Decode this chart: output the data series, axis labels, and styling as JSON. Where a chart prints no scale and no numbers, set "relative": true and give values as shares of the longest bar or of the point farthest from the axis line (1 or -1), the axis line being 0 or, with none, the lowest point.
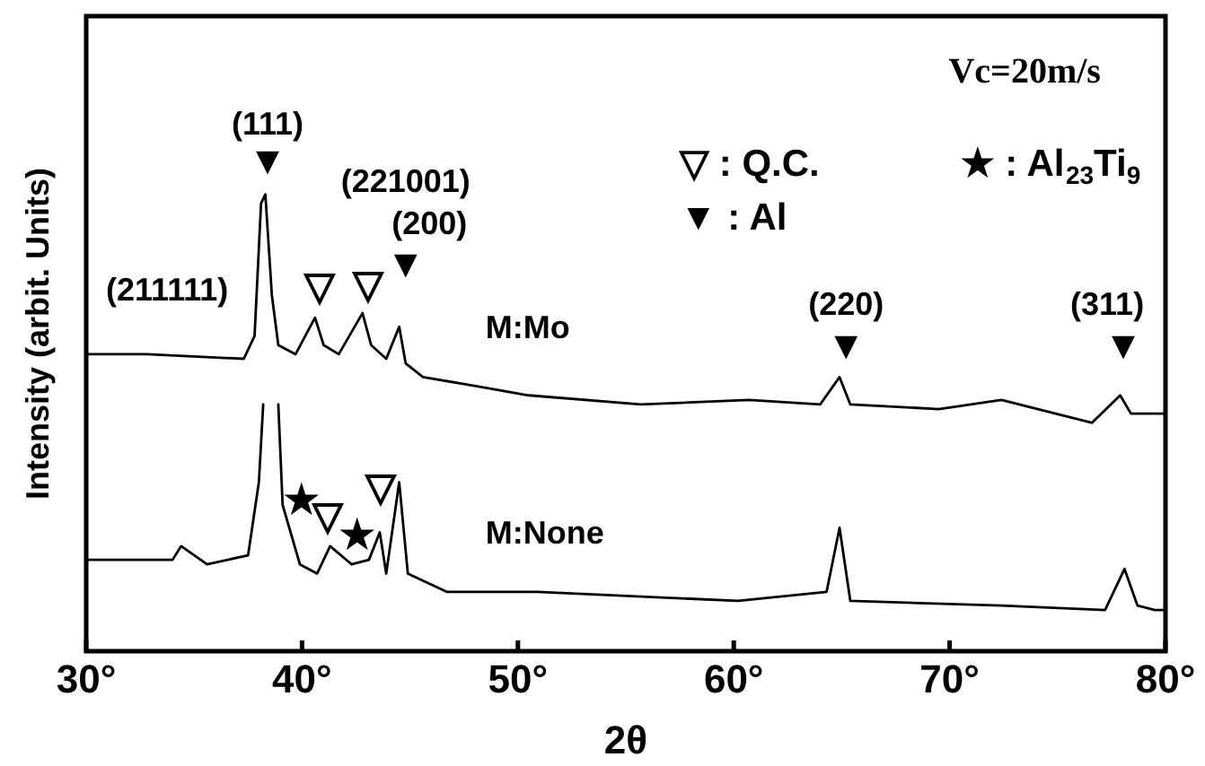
{
  "chart_data": {
    "type": "line",
    "relative": true,
    "xlabel": "2θ",
    "ylabel": "Intensity (arbit. Units)",
    "xlim": [
      30,
      80
    ],
    "xticks": [
      {
        "value": 30,
        "label": "30°"
      },
      {
        "value": 40,
        "label": "40°"
      },
      {
        "value": 50,
        "label": "50°"
      },
      {
        "value": 60,
        "label": "60°"
      },
      {
        "value": 70,
        "label": "70°"
      },
      {
        "value": 80,
        "label": "80°"
      }
    ],
    "marker": "none",
    "legend": false,
    "grid": false,
    "series": [
      {
        "name": "M:Mo",
        "color": "#000000",
        "x": [
          30,
          32.8,
          37.3,
          37.8,
          38.1,
          38.3,
          38.6,
          38.9,
          39.7,
          40.6,
          41.0,
          41.7,
          42.8,
          43.2,
          43.9,
          44.5,
          44.8,
          45.6,
          48.1,
          50.5,
          55.7,
          60.7,
          64.0,
          64.9,
          65.4,
          69.5,
          72.4,
          76.6,
          77.9,
          78.4,
          79.5,
          80
        ],
        "values": [
          0.65,
          0.65,
          0.64,
          0.69,
          0.98,
          1,
          0.78,
          0.67,
          0.65,
          0.73,
          0.67,
          0.65,
          0.74,
          0.67,
          0.64,
          0.71,
          0.63,
          0.6,
          0.58,
          0.56,
          0.54,
          0.55,
          0.54,
          0.6,
          0.54,
          0.53,
          0.55,
          0.5,
          0.56,
          0.52,
          0.52,
          0.52
        ]
      },
      {
        "name": "M:None",
        "color": "#000000",
        "x": [
          30,
          34.0,
          34.4,
          35.6,
          37.5,
          38.0,
          38.2,
          38.5,
          38.9,
          39.1,
          39.9,
          40.7,
          41.3,
          42.3,
          43.1,
          43.6,
          43.9,
          44.5,
          44.9,
          46.7,
          50.9,
          60.2,
          64.3,
          64.9,
          65.4,
          72.4,
          77.2,
          78.1,
          78.7,
          79.5,
          80
        ],
        "values": [
          0.2,
          0.2,
          0.23,
          0.19,
          0.21,
          0.37,
          0.54,
          null,
          0.54,
          0.32,
          0.19,
          0.17,
          0.23,
          0.19,
          0.2,
          0.26,
          0.17,
          0.37,
          0.17,
          0.13,
          0.13,
          0.11,
          0.13,
          0.27,
          0.11,
          0.1,
          0.09,
          0.18,
          0.1,
          0.09,
          0.09
        ]
      }
    ],
    "annotations": [
      "(111)",
      "▼",
      "(211111)",
      "(221001)",
      "(200)",
      "▼",
      "▽",
      "▽",
      "★",
      "▽",
      "★",
      "▽",
      "(220)",
      "▼",
      "(311)",
      "▼",
      "Vc=20m/s",
      "▽ : Q.C.",
      "★ : Al$_{23}$Ti$_{9}$",
      "▼ : Al"
    ]
  }
}
